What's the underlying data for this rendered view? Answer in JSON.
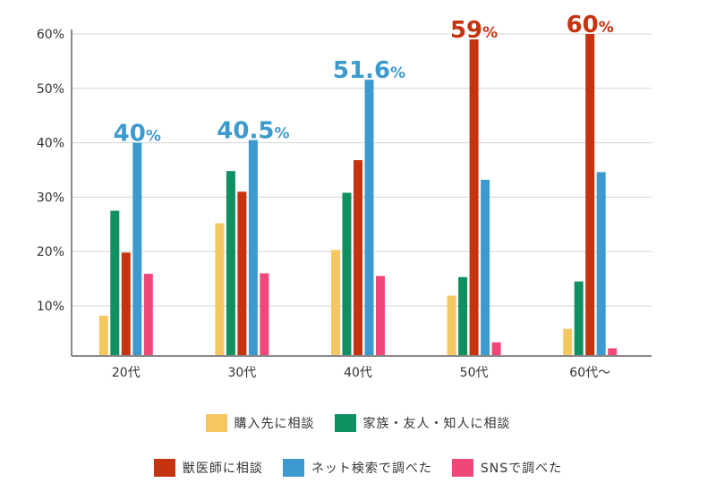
{
  "chart_data": {
    "type": "bar",
    "categories": [
      "20代",
      "30代",
      "40代",
      "50代",
      "60代～"
    ],
    "ylim": [
      2.5,
      60
    ],
    "y_ticks": [
      {
        "value": 10,
        "label": "10%"
      },
      {
        "value": 20,
        "label": "20%"
      },
      {
        "value": 30,
        "label": "30%"
      },
      {
        "value": 40,
        "label": "40%"
      },
      {
        "value": 50,
        "label": "50%"
      },
      {
        "value": 60,
        "label": "60%"
      }
    ],
    "grid": true,
    "series": [
      {
        "name": "購入先に相談",
        "color": "#f5c760",
        "values": [
          8.2,
          25.2,
          20.3,
          11.9,
          5.8
        ]
      },
      {
        "name": "家族・友人・知人に相談",
        "color": "#0f9060",
        "values": [
          27.5,
          34.8,
          30.8,
          15.3,
          14.5
        ]
      },
      {
        "name": "獣医師に相談",
        "color": "#c6330f",
        "values": [
          19.8,
          31.0,
          36.8,
          59,
          60
        ]
      },
      {
        "name": "ネット検索で調べた",
        "color": "#3d9acf",
        "values": [
          40,
          40.5,
          51.6,
          33.2,
          34.6
        ]
      },
      {
        "name": "SNSで調べた",
        "color": "#ef4878",
        "values": [
          15.9,
          16.0,
          15.5,
          3.3,
          2.2
        ]
      }
    ],
    "callouts": [
      {
        "category_index": 0,
        "series_index": 3,
        "number": "40",
        "unit": "%",
        "color": "#3d9acf"
      },
      {
        "category_index": 1,
        "series_index": 3,
        "number": "40.5",
        "unit": "%",
        "color": "#3d9acf"
      },
      {
        "category_index": 2,
        "series_index": 3,
        "number": "51.6",
        "unit": "%",
        "color": "#3d9acf"
      },
      {
        "category_index": 3,
        "series_index": 2,
        "number": "59",
        "unit": "%",
        "color": "#c6330f"
      },
      {
        "category_index": 4,
        "series_index": 2,
        "number": "60",
        "unit": "%",
        "color": "#c6330f"
      }
    ],
    "legend": [
      {
        "series_index": 0
      },
      {
        "series_index": 1
      },
      {
        "series_index": 2
      },
      {
        "series_index": 3
      },
      {
        "series_index": 4
      }
    ],
    "legend_rows": [
      [
        0,
        1
      ],
      [
        2,
        3,
        4
      ]
    ]
  }
}
